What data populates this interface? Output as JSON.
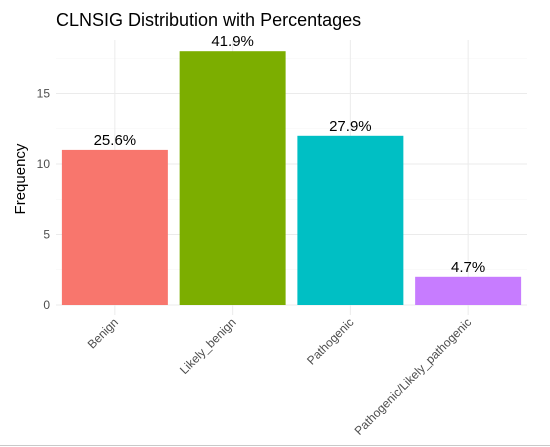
{
  "chart_data": {
    "type": "bar",
    "title": "CLNSIG Distribution with Percentages",
    "xlabel": "",
    "ylabel": "Frequency",
    "ylim": [
      0,
      19.2
    ],
    "yticks": [
      0,
      5,
      10,
      15
    ],
    "grid": true,
    "legend": "none",
    "categories": [
      "Benign",
      "Likely_benign",
      "Pathogenic",
      "Pathogenic/Likely_pathogenic"
    ],
    "values": [
      11,
      18,
      12,
      2
    ],
    "labels": [
      "25.6%",
      "41.9%",
      "27.9%",
      "4.7%"
    ],
    "colors": [
      "#F8766D",
      "#7CAE00",
      "#00BFC4",
      "#C77CFF"
    ]
  }
}
